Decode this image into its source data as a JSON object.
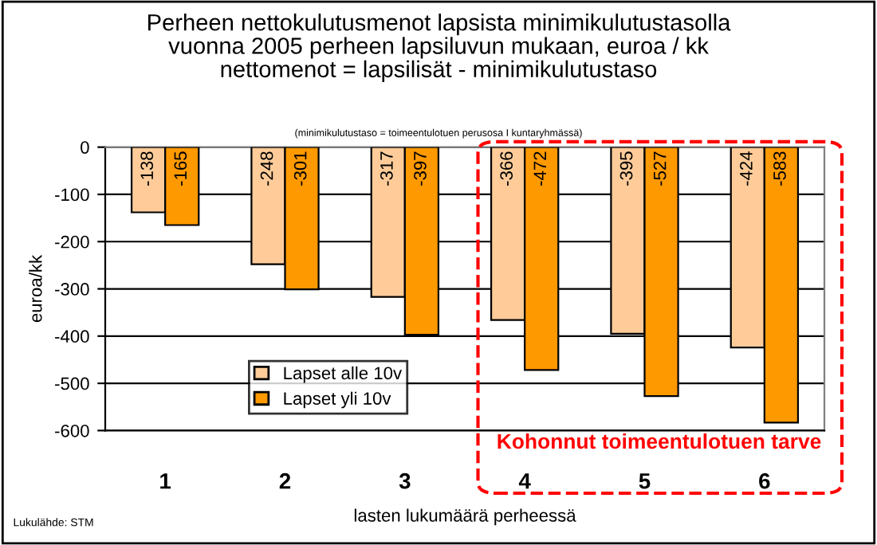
{
  "chart_data": {
    "type": "bar",
    "title": "Perheen nettokulutusmenot lapsista minimikulutustasolla\nvuonna 2005 perheen lapsiluvun mukaan, euroa / kk\nnettomenot = lapsilisät - minimikulutustaso",
    "subtitle": "(minimikulutustaso = toimeentulotuen perusosa I kuntaryhmässä)",
    "xlabel": "lasten lukumäärä perheessä",
    "ylabel": "euroa/kk",
    "categories": [
      "1",
      "2",
      "3",
      "4",
      "5",
      "6"
    ],
    "series": [
      {
        "name": "Lapset alle 10v",
        "color": "#ffcc99",
        "values": [
          -138,
          -248,
          -317,
          -366,
          -395,
          -424
        ]
      },
      {
        "name": "Lapset yli 10v",
        "color": "#ff9900",
        "values": [
          -165,
          -301,
          -397,
          -472,
          -527,
          -583
        ]
      }
    ],
    "ylim": [
      -600,
      0
    ],
    "yticks": [
      -600,
      -500,
      -400,
      -300,
      -200,
      -100,
      0
    ],
    "grid": "y",
    "legend": "bottom left",
    "data_labels": true,
    "annotations": [
      "Kohonnut toimeentulotuen tarve",
      "Lukulähde: STM"
    ]
  }
}
